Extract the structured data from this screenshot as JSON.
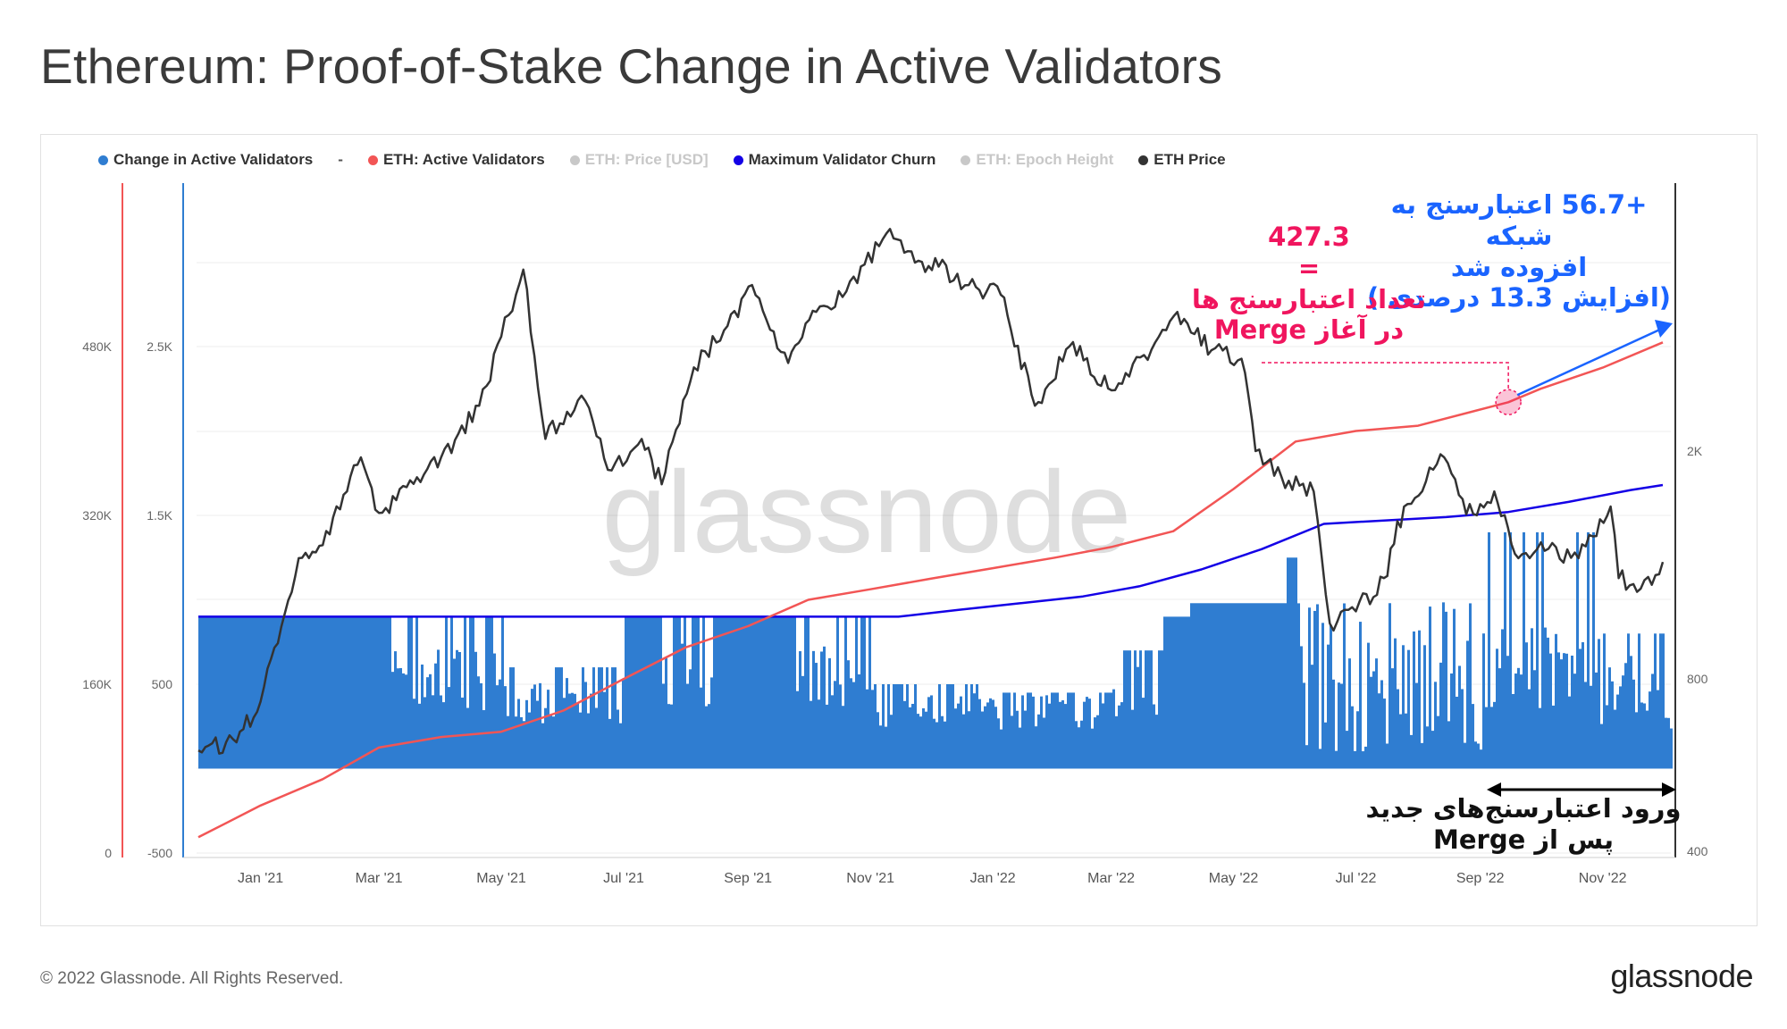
{
  "title": "Ethereum: Proof-of-Stake Change in Active Validators",
  "legend": [
    {
      "label": "Change in Active Validators",
      "color": "#2f7dd1",
      "active": true
    },
    {
      "label": "-",
      "color": "",
      "active": true
    },
    {
      "label": "ETH: Active Validators",
      "color": "#f25555",
      "active": true
    },
    {
      "label": "ETH: Price [USD]",
      "color": "#555555",
      "active": false
    },
    {
      "label": "Maximum Validator Churn",
      "color": "#1400e6",
      "active": true
    },
    {
      "label": "ETH: Epoch Height",
      "color": "#a855f7",
      "active": false
    },
    {
      "label": "ETH Price",
      "color": "#333333",
      "active": true
    }
  ],
  "footer": "© 2022 Glassnode. All Rights Reserved.",
  "brand": "glassnode",
  "watermark": "glassnode",
  "annotations": {
    "added": "+56.7 اعتبارسنج به شبکه",
    "added_line2": "افزوده شد",
    "added_line3": "(افزایش 13.3 درصدی )",
    "merge_count": "427.3",
    "merge_eq": "=",
    "merge_line1": "تعداد اعتبارسنج ها",
    "merge_line2": "در آغاز  Merge",
    "post_merge_line1": "ورود اعتبارسنج‌های جدید",
    "post_merge_line2": "پس از Merge"
  },
  "chart_data": {
    "type": "line",
    "x_ticks": [
      "Jan '21",
      "Mar '21",
      "May '21",
      "Jul '21",
      "Sep '21",
      "Nov '21",
      "Jan '22",
      "Mar '22",
      "May '22",
      "Jul '22",
      "Sep '22",
      "Nov '22"
    ],
    "axes": {
      "active_validators_axis": {
        "ticks": [
          "0",
          "160K",
          "320K",
          "480K"
        ],
        "range": [
          0,
          480000
        ]
      },
      "validator_change_axis": {
        "ticks": [
          "-500",
          "500",
          "1.5K",
          "2.5K"
        ],
        "range": [
          -500,
          2500
        ]
      },
      "eth_price_axis": {
        "ticks": [
          "400",
          "800",
          "2K"
        ],
        "scale": "log"
      }
    },
    "series": [
      {
        "name": "ETH: Active Validators",
        "color": "#f25555",
        "x": [
          "2020-12-01",
          "2021-01-01",
          "2021-02-01",
          "2021-03-01",
          "2021-04-01",
          "2021-05-01",
          "2021-06-01",
          "2021-07-01",
          "2021-08-01",
          "2021-09-01",
          "2021-10-01",
          "2021-11-01",
          "2021-12-01",
          "2022-01-01",
          "2022-02-01",
          "2022-03-01",
          "2022-04-01",
          "2022-05-01",
          "2022-06-01",
          "2022-07-01",
          "2022-08-01",
          "2022-09-15",
          "2022-10-01",
          "2022-11-01",
          "2022-12-01"
        ],
        "values": [
          15000,
          45000,
          70000,
          100000,
          110000,
          115000,
          135000,
          165000,
          195000,
          215000,
          240000,
          250000,
          260000,
          270000,
          280000,
          290000,
          305000,
          345000,
          390000,
          400000,
          405000,
          427300,
          440000,
          460000,
          484000
        ]
      },
      {
        "name": "Maximum Validator Churn",
        "color": "#1400e6",
        "x": [
          "2020-12-01",
          "2021-11-15",
          "2021-12-15",
          "2022-01-15",
          "2022-02-15",
          "2022-03-15",
          "2022-04-15",
          "2022-05-15",
          "2022-06-15",
          "2022-07-15",
          "2022-08-15",
          "2022-09-15",
          "2022-10-15",
          "2022-11-15",
          "2022-12-01"
        ],
        "values": [
          900,
          900,
          940,
          980,
          1020,
          1080,
          1180,
          1300,
          1450,
          1470,
          1490,
          1520,
          1580,
          1650,
          1680
        ]
      },
      {
        "name": "ETH Price",
        "color": "#333333",
        "x": [
          "2020-12-01",
          "2020-12-20",
          "2021-01-01",
          "2021-01-20",
          "2021-02-01",
          "2021-02-20",
          "2021-03-01",
          "2021-03-20",
          "2021-04-01",
          "2021-04-20",
          "2021-05-12",
          "2021-05-23",
          "2021-06-10",
          "2021-06-25",
          "2021-07-10",
          "2021-07-20",
          "2021-08-05",
          "2021-08-20",
          "2021-09-03",
          "2021-09-21",
          "2021-10-05",
          "2021-10-20",
          "2021-11-09",
          "2021-11-25",
          "2021-12-05",
          "2021-12-20",
          "2022-01-05",
          "2022-01-22",
          "2022-02-10",
          "2022-02-24",
          "2022-03-10",
          "2022-04-03",
          "2022-04-20",
          "2022-05-05",
          "2022-05-12",
          "2022-05-25",
          "2022-06-10",
          "2022-06-18",
          "2022-07-01",
          "2022-07-15",
          "2022-07-25",
          "2022-08-14",
          "2022-08-25",
          "2022-09-08",
          "2022-09-20",
          "2022-10-05",
          "2022-10-20",
          "2022-11-05",
          "2022-11-09",
          "2022-11-20",
          "2022-12-01"
        ],
        "values": [
          600,
          620,
          730,
          1300,
          1370,
          1950,
          1560,
          1800,
          1950,
          2400,
          4150,
          2100,
          2500,
          1850,
          2100,
          1750,
          2800,
          3250,
          3900,
          2850,
          3500,
          3800,
          4800,
          4300,
          4200,
          3900,
          3750,
          2400,
          3100,
          2600,
          2700,
          3500,
          3000,
          2900,
          2000,
          1800,
          1700,
          1000,
          1050,
          1200,
          1600,
          1950,
          1550,
          1700,
          1300,
          1350,
          1300,
          1600,
          1200,
          1150,
          1280
        ]
      },
      {
        "name": "Change in Active Validators",
        "color": "#2f7dd1",
        "note": "daily bars; mostly capped at the churn limit (~900/day in 2021, rising to ~1250/day mid-2022) with frequent dips; values fall to 0–300 range at times",
        "x": [
          "2020-12",
          "2021-03",
          "2021-05",
          "2021-07",
          "2021-09",
          "2021-11",
          "2022-01",
          "2022-03",
          "2022-05",
          "2022-06",
          "2022-07",
          "2022-08",
          "2022-09",
          "2022-10",
          "2022-11",
          "2022-12"
        ],
        "values": [
          900,
          900,
          600,
          900,
          900,
          500,
          450,
          700,
          1250,
          1250,
          300,
          200,
          1450,
          400,
          800,
          300
        ]
      }
    ],
    "annotations": {
      "merge_active_validators": 427300,
      "added_after_merge": 56700,
      "percent_increase": 13.3
    }
  }
}
